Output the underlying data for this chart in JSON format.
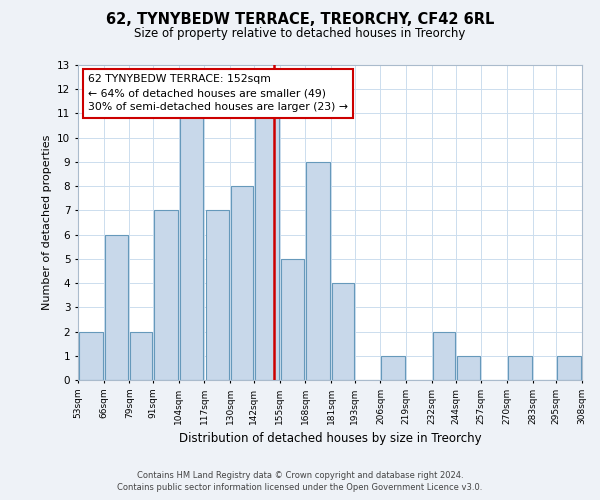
{
  "title": "62, TYNYBEDW TERRACE, TREORCHY, CF42 6RL",
  "subtitle": "Size of property relative to detached houses in Treorchy",
  "xlabel": "Distribution of detached houses by size in Treorchy",
  "ylabel": "Number of detached properties",
  "bin_edges": [
    53,
    66,
    79,
    91,
    104,
    117,
    130,
    142,
    155,
    168,
    181,
    193,
    206,
    219,
    232,
    244,
    257,
    270,
    283,
    295,
    308
  ],
  "bin_labels": [
    "53sqm",
    "66sqm",
    "79sqm",
    "91sqm",
    "104sqm",
    "117sqm",
    "130sqm",
    "142sqm",
    "155sqm",
    "168sqm",
    "181sqm",
    "193sqm",
    "206sqm",
    "219sqm",
    "232sqm",
    "244sqm",
    "257sqm",
    "270sqm",
    "283sqm",
    "295sqm",
    "308sqm"
  ],
  "counts": [
    2,
    6,
    2,
    7,
    11,
    7,
    8,
    11,
    5,
    9,
    4,
    0,
    1,
    0,
    2,
    1,
    0,
    1,
    0,
    1
  ],
  "bar_color": "#c8d8ea",
  "bar_edge_color": "#6699bb",
  "reference_line_x": 152,
  "reference_line_color": "#cc0000",
  "ylim": [
    0,
    13
  ],
  "yticks": [
    0,
    1,
    2,
    3,
    4,
    5,
    6,
    7,
    8,
    9,
    10,
    11,
    12,
    13
  ],
  "annotation_title": "62 TYNYBEDW TERRACE: 152sqm",
  "annotation_line1": "← 64% of detached houses are smaller (49)",
  "annotation_line2": "30% of semi-detached houses are larger (23) →",
  "footer_line1": "Contains HM Land Registry data © Crown copyright and database right 2024.",
  "footer_line2": "Contains public sector information licensed under the Open Government Licence v3.0.",
  "background_color": "#eef2f7",
  "plot_background_color": "#ffffff",
  "grid_color": "#ccddee"
}
